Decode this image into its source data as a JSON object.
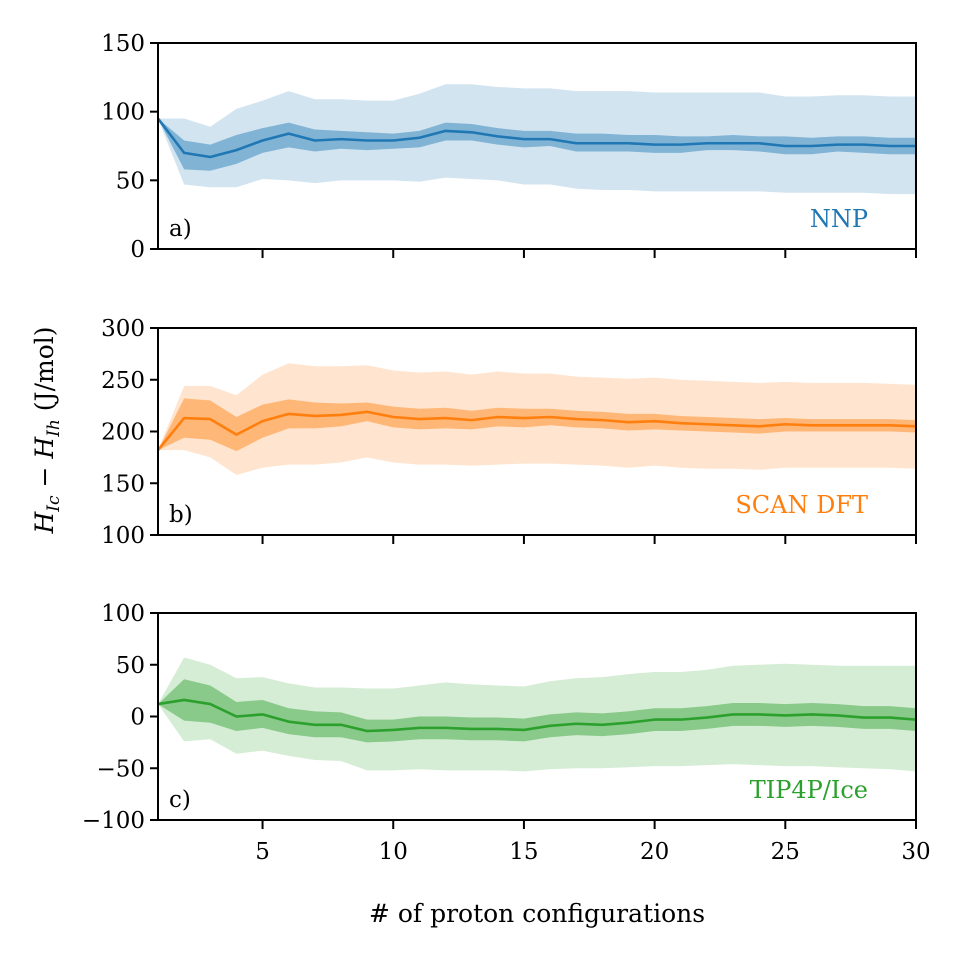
{
  "figure": {
    "ylabel": "H_Ic − H_Ih (J/mol)",
    "ylabel_parts": {
      "h1": "H",
      "sub1": "Ic",
      "minus": " − ",
      "h2": "H",
      "sub2": "Ih",
      "unit": " (J/mol)"
    },
    "xlabel": "# of proton configurations"
  },
  "chart_data": [
    {
      "type": "line",
      "panel_label": "a)",
      "series_label": "NNP",
      "color": "#1f77b4",
      "x": [
        1,
        2,
        3,
        4,
        5,
        6,
        7,
        8,
        9,
        10,
        11,
        12,
        13,
        14,
        15,
        16,
        17,
        18,
        19,
        20,
        21,
        22,
        23,
        24,
        25,
        26,
        27,
        28,
        29,
        30
      ],
      "mean": [
        95,
        70,
        67,
        72,
        79,
        84,
        79,
        80,
        79,
        79,
        81,
        86,
        85,
        82,
        80,
        80,
        77,
        77,
        77,
        76,
        76,
        77,
        77,
        77,
        75,
        75,
        76,
        76,
        75,
        75
      ],
      "inner_upper": [
        95,
        79,
        76,
        83,
        88,
        92,
        87,
        86,
        85,
        84,
        86,
        92,
        91,
        88,
        86,
        86,
        84,
        84,
        83,
        83,
        82,
        82,
        83,
        82,
        82,
        81,
        82,
        82,
        81,
        81
      ],
      "inner_lower": [
        95,
        58,
        57,
        62,
        70,
        74,
        71,
        73,
        72,
        73,
        74,
        79,
        79,
        76,
        74,
        75,
        71,
        71,
        71,
        70,
        70,
        72,
        72,
        71,
        69,
        69,
        71,
        70,
        69,
        69
      ],
      "outer_upper": [
        95,
        95,
        89,
        102,
        108,
        115,
        109,
        109,
        108,
        108,
        113,
        120,
        120,
        118,
        117,
        117,
        115,
        115,
        115,
        114,
        114,
        114,
        114,
        114,
        111,
        111,
        112,
        112,
        111,
        111
      ],
      "outer_lower": [
        95,
        47,
        45,
        45,
        51,
        50,
        48,
        50,
        50,
        50,
        49,
        52,
        51,
        50,
        47,
        47,
        44,
        43,
        43,
        42,
        42,
        42,
        42,
        42,
        41,
        41,
        41,
        41,
        40,
        40
      ],
      "xlim": [
        1,
        30
      ],
      "ylim": [
        0,
        150
      ],
      "yticks": [
        0,
        50,
        100,
        150
      ],
      "ytick_labels": [
        "0",
        "50",
        "100",
        "150"
      ],
      "xticks": [
        5,
        10,
        15,
        20,
        25,
        30
      ],
      "xtick_labels": []
    },
    {
      "type": "line",
      "panel_label": "b)",
      "series_label": "SCAN DFT",
      "color": "#ff7f0e",
      "x": [
        1,
        2,
        3,
        4,
        5,
        6,
        7,
        8,
        9,
        10,
        11,
        12,
        13,
        14,
        15,
        16,
        17,
        18,
        19,
        20,
        21,
        22,
        23,
        24,
        25,
        26,
        27,
        28,
        29,
        30
      ],
      "mean": [
        182,
        213,
        212,
        197,
        210,
        217,
        215,
        216,
        219,
        214,
        212,
        213,
        211,
        214,
        213,
        214,
        212,
        211,
        209,
        210,
        208,
        207,
        206,
        205,
        207,
        206,
        206,
        206,
        206,
        205
      ],
      "inner_upper": [
        182,
        232,
        230,
        214,
        226,
        231,
        228,
        227,
        228,
        224,
        222,
        223,
        220,
        223,
        222,
        222,
        220,
        219,
        217,
        217,
        215,
        214,
        213,
        212,
        213,
        212,
        212,
        212,
        212,
        211
      ],
      "inner_lower": [
        182,
        194,
        192,
        181,
        194,
        203,
        203,
        205,
        210,
        204,
        202,
        203,
        202,
        205,
        204,
        206,
        204,
        203,
        201,
        202,
        201,
        200,
        199,
        198,
        200,
        200,
        200,
        200,
        200,
        199
      ],
      "outer_upper": [
        182,
        244,
        244,
        235,
        255,
        266,
        263,
        263,
        264,
        259,
        257,
        258,
        255,
        258,
        256,
        256,
        253,
        252,
        251,
        252,
        250,
        249,
        248,
        247,
        248,
        247,
        247,
        247,
        246,
        245
      ],
      "outer_lower": [
        182,
        182,
        175,
        158,
        165,
        168,
        168,
        170,
        175,
        170,
        168,
        168,
        167,
        168,
        169,
        169,
        168,
        167,
        165,
        167,
        165,
        164,
        164,
        163,
        165,
        165,
        165,
        165,
        165,
        164
      ],
      "xlim": [
        1,
        30
      ],
      "ylim": [
        100,
        300
      ],
      "yticks": [
        100,
        150,
        200,
        250,
        300
      ],
      "ytick_labels": [
        "100",
        "150",
        "200",
        "250",
        "300"
      ],
      "xticks": [
        5,
        10,
        15,
        20,
        25,
        30
      ],
      "xtick_labels": []
    },
    {
      "type": "line",
      "panel_label": "c)",
      "series_label": "TIP4P/Ice",
      "color": "#2ca02c",
      "x": [
        1,
        2,
        3,
        4,
        5,
        6,
        7,
        8,
        9,
        10,
        11,
        12,
        13,
        14,
        15,
        16,
        17,
        18,
        19,
        20,
        21,
        22,
        23,
        24,
        25,
        26,
        27,
        28,
        29,
        30
      ],
      "mean": [
        12,
        16,
        12,
        0,
        2,
        -5,
        -8,
        -8,
        -14,
        -13,
        -11,
        -11,
        -12,
        -12,
        -13,
        -9,
        -7,
        -8,
        -6,
        -3,
        -3,
        -1,
        2,
        2,
        1,
        2,
        1,
        -1,
        -1,
        -3
      ],
      "inner_upper": [
        12,
        36,
        30,
        14,
        16,
        8,
        5,
        4,
        -3,
        -3,
        0,
        0,
        -1,
        -1,
        -2,
        2,
        4,
        3,
        5,
        8,
        8,
        10,
        13,
        13,
        12,
        13,
        12,
        10,
        10,
        8
      ],
      "inner_lower": [
        12,
        -4,
        -6,
        -14,
        -11,
        -17,
        -20,
        -20,
        -25,
        -24,
        -22,
        -22,
        -23,
        -23,
        -24,
        -20,
        -18,
        -19,
        -17,
        -14,
        -14,
        -12,
        -9,
        -9,
        -10,
        -9,
        -10,
        -12,
        -12,
        -14
      ],
      "outer_upper": [
        12,
        57,
        50,
        37,
        38,
        32,
        28,
        28,
        27,
        27,
        30,
        33,
        31,
        30,
        29,
        34,
        37,
        38,
        41,
        43,
        43,
        45,
        49,
        50,
        51,
        50,
        49,
        49,
        49,
        49
      ],
      "outer_lower": [
        12,
        -24,
        -22,
        -36,
        -33,
        -38,
        -42,
        -43,
        -52,
        -52,
        -51,
        -52,
        -52,
        -52,
        -53,
        -51,
        -50,
        -50,
        -49,
        -48,
        -48,
        -47,
        -46,
        -47,
        -48,
        -48,
        -49,
        -50,
        -51,
        -53
      ],
      "xlim": [
        1,
        30
      ],
      "ylim": [
        -100,
        100
      ],
      "yticks": [
        -100,
        -50,
        0,
        50,
        100
      ],
      "ytick_labels": [
        "−100",
        "−50",
        "0",
        "50",
        "100"
      ],
      "xticks": [
        5,
        10,
        15,
        20,
        25,
        30
      ],
      "xtick_labels": [
        "5",
        "10",
        "15",
        "20",
        "25",
        "30"
      ]
    }
  ]
}
